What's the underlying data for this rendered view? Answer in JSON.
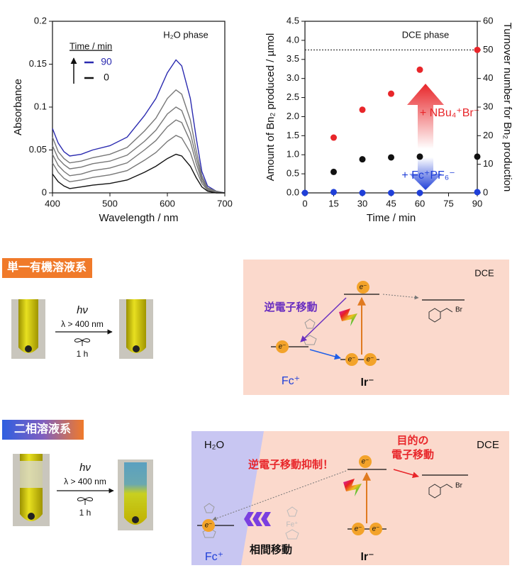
{
  "chart_data": [
    {
      "type": "line",
      "annotation": "H₂O phase",
      "xlabel": "Wavelength / nm",
      "ylabel": "Absorbance",
      "legend_title": "Time / min",
      "legend": "upper left",
      "x": [
        400,
        410,
        420,
        430,
        450,
        470,
        500,
        530,
        560,
        580,
        600,
        615,
        625,
        640,
        650,
        660,
        670,
        685,
        700
      ],
      "series": [
        {
          "name": "90",
          "color": "#2b2bb0",
          "values": [
            0.075,
            0.058,
            0.048,
            0.043,
            0.045,
            0.05,
            0.055,
            0.065,
            0.09,
            0.11,
            0.14,
            0.155,
            0.148,
            0.11,
            0.065,
            0.025,
            0.008,
            0.002,
            0
          ]
        },
        {
          "color": "#777777",
          "values": [
            0.065,
            0.048,
            0.04,
            0.035,
            0.037,
            0.041,
            0.045,
            0.053,
            0.072,
            0.087,
            0.11,
            0.12,
            0.115,
            0.085,
            0.05,
            0.02,
            0.006,
            0.002,
            0
          ]
        },
        {
          "color": "#777777",
          "values": [
            0.055,
            0.04,
            0.033,
            0.028,
            0.03,
            0.034,
            0.037,
            0.044,
            0.06,
            0.073,
            0.092,
            0.1,
            0.096,
            0.07,
            0.042,
            0.017,
            0.005,
            0.001,
            0
          ]
        },
        {
          "color": "#777777",
          "values": [
            0.045,
            0.032,
            0.025,
            0.02,
            0.022,
            0.026,
            0.029,
            0.035,
            0.05,
            0.061,
            0.077,
            0.085,
            0.082,
            0.06,
            0.035,
            0.014,
            0.004,
            0.001,
            0
          ]
        },
        {
          "color": "#777777",
          "values": [
            0.035,
            0.024,
            0.017,
            0.013,
            0.015,
            0.018,
            0.021,
            0.026,
            0.038,
            0.047,
            0.06,
            0.067,
            0.064,
            0.047,
            0.027,
            0.011,
            0.003,
            0.001,
            0
          ]
        },
        {
          "name": "0",
          "color": "#111111",
          "values": [
            0.022,
            0.013,
            0.008,
            0.005,
            0.007,
            0.009,
            0.011,
            0.015,
            0.024,
            0.031,
            0.04,
            0.045,
            0.043,
            0.031,
            0.018,
            0.007,
            0.002,
            0,
            0
          ]
        }
      ],
      "xlim": [
        400,
        700
      ],
      "xticks": [
        400,
        500,
        600,
        700
      ],
      "ylim": [
        0,
        0.2
      ],
      "yticks": [
        0,
        0.05,
        0.1,
        0.15,
        0.2
      ]
    },
    {
      "type": "scatter",
      "annotation": "DCE phase",
      "xlabel": "Time / min",
      "ylabel": "Amount of Bn₂ produced / µmol",
      "y2label": "Turnover number for Bn₂ production",
      "arrow_up_label": "+ NBu₄⁺Br⁻",
      "arrow_down_label": "+ Fc⁺PF₆⁻",
      "series": [
        {
          "color": "#e8262a",
          "x": [
            15,
            30,
            45,
            60,
            90
          ],
          "values": [
            1.45,
            2.18,
            2.6,
            3.23,
            3.75
          ]
        },
        {
          "color": "#111111",
          "x": [
            15,
            30,
            45,
            60,
            90
          ],
          "values": [
            0.55,
            0.88,
            0.93,
            0.95,
            0.95
          ]
        },
        {
          "color": "#1f3fd8",
          "x": [
            0,
            15,
            30,
            45,
            60,
            90
          ],
          "values": [
            0,
            0.02,
            0,
            0,
            0,
            0.02
          ]
        }
      ],
      "hline": 3.75,
      "xlim": [
        0,
        90
      ],
      "xticks": [
        0,
        15,
        30,
        45,
        60,
        75,
        90
      ],
      "ylim": [
        0,
        4.5
      ],
      "yticks": [
        {
          "value": 0,
          "label": "0.0"
        },
        0.5,
        {
          "value": 1,
          "label": "1.0"
        },
        1.5,
        {
          "value": 2,
          "label": "2.0"
        },
        2.5,
        {
          "value": 3,
          "label": "3.0"
        },
        3.5,
        {
          "value": 4,
          "label": "4.0"
        },
        4.5
      ],
      "y2lim": [
        0,
        60
      ],
      "y2ticks": [
        0,
        10,
        20,
        30,
        40,
        50,
        60
      ]
    }
  ],
  "single": {
    "label": "単一有機溶液系",
    "light": "hν",
    "wavelength": "λ > 400 nm",
    "time": "1 h",
    "phase": "DCE",
    "back_transfer": "逆電子移動",
    "electron": "e⁻",
    "bromide": "Br",
    "fc": "Fc⁺",
    "ir": "Ir⁻"
  },
  "biphasic": {
    "label": "二相溶液系",
    "light": "hν",
    "wavelength": "λ > 400 nm",
    "time": "1 h",
    "water": "H₂O",
    "phase": "DCE",
    "suppressed": "逆電子移動抑制！",
    "target_1": "目的の",
    "target_2": "電子移動",
    "transfer": "相間移動",
    "electron": "e⁻",
    "bromide": "Br",
    "fe": "Fe⁺",
    "fc": "Fc⁺",
    "ir": "Ir⁻"
  }
}
